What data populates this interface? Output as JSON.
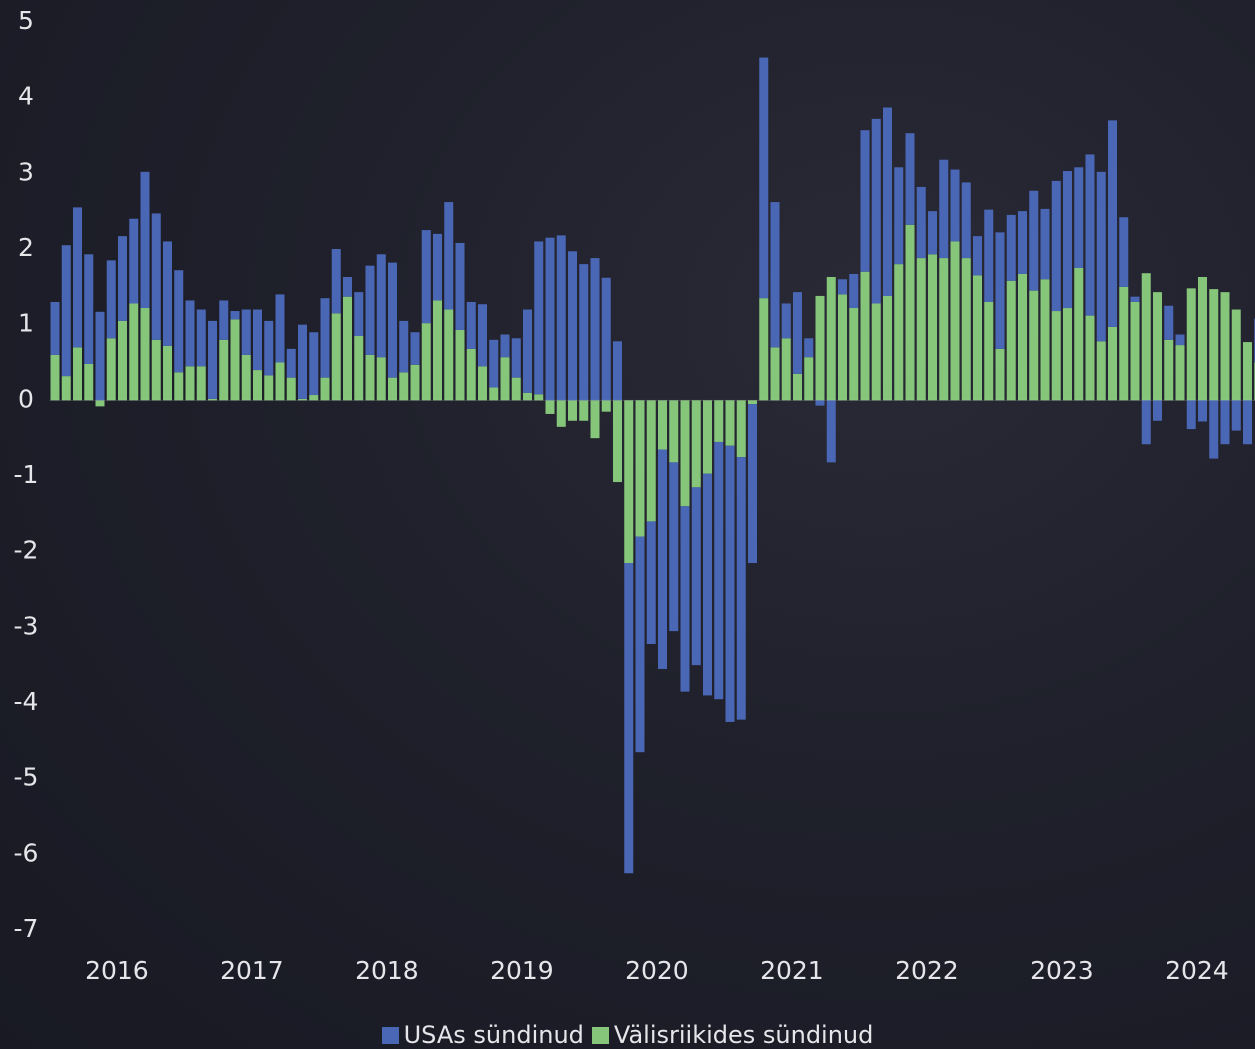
{
  "chart_data": {
    "type": "bar",
    "stacked": true,
    "categories": [
      null,
      null,
      null,
      null,
      null,
      null,
      "2016",
      null,
      null,
      null,
      null,
      null,
      null,
      null,
      null,
      null,
      null,
      null,
      "2017",
      null,
      null,
      null,
      null,
      null,
      null,
      null,
      null,
      null,
      null,
      null,
      "2018",
      null,
      null,
      null,
      null,
      null,
      null,
      null,
      null,
      null,
      null,
      null,
      "2019",
      null,
      null,
      null,
      null,
      null,
      null,
      null,
      null,
      null,
      null,
      null,
      "2020",
      null,
      null,
      null,
      null,
      null,
      null,
      null,
      null,
      null,
      null,
      null,
      "2021",
      null,
      null,
      null,
      null,
      null,
      null,
      null,
      null,
      null,
      null,
      null,
      "2022",
      null,
      null,
      null,
      null,
      null,
      null,
      null,
      null,
      null,
      null,
      null,
      "2023",
      null,
      null,
      null,
      null,
      null,
      null,
      null,
      null,
      null,
      null,
      null,
      "2024",
      null,
      null,
      null,
      null,
      null
    ],
    "series": [
      {
        "name": "USAs sündinud",
        "color": "#4a67b6",
        "values": [
          0.7,
          1.73,
          1.85,
          1.45,
          1.17,
          1.03,
          1.12,
          1.12,
          1.8,
          1.67,
          1.38,
          1.35,
          0.87,
          0.75,
          1.03,
          0.52,
          0.11,
          0.6,
          0.8,
          0.72,
          0.9,
          0.38,
          0.98,
          0.83,
          1.05,
          0.85,
          0.26,
          0.58,
          1.18,
          1.36,
          1.52,
          0.68,
          0.43,
          1.23,
          0.88,
          1.42,
          1.15,
          0.62,
          0.82,
          0.63,
          0.3,
          0.52,
          1.1,
          2.02,
          2.15,
          2.18,
          1.97,
          1.8,
          1.88,
          1.62,
          0.78,
          -4.1,
          -2.85,
          -1.62,
          -2.9,
          -2.23,
          -2.45,
          -2.35,
          -2.93,
          -3.4,
          -3.65,
          -3.47,
          -2.1,
          3.18,
          1.92,
          0.46,
          1.08,
          0.25,
          -0.07,
          -0.82,
          0.2,
          0.45,
          1.87,
          2.44,
          2.49,
          1.28,
          1.21,
          0.94,
          0.57,
          1.3,
          0.95,
          1.0,
          0.52,
          1.22,
          1.54,
          0.87,
          0.83,
          1.32,
          0.93,
          1.72,
          1.81,
          1.33,
          2.13,
          2.24,
          2.73,
          0.92,
          0.07,
          -0.58,
          -0.27,
          0.45,
          0.14,
          -0.38,
          -0.28,
          -0.77,
          -0.58,
          -0.4,
          -0.58,
          0.58
        ]
      },
      {
        "name": "Välisriikides sündinud",
        "color": "#86c67a",
        "values": [
          0.6,
          0.32,
          0.7,
          0.48,
          -0.08,
          0.82,
          1.05,
          1.28,
          1.22,
          0.8,
          0.72,
          0.37,
          0.45,
          0.45,
          0.02,
          0.8,
          1.07,
          0.6,
          0.4,
          0.33,
          0.5,
          0.3,
          0.02,
          0.07,
          0.3,
          1.15,
          1.37,
          0.85,
          0.6,
          0.57,
          0.3,
          0.37,
          0.47,
          1.02,
          1.32,
          1.2,
          0.93,
          0.68,
          0.45,
          0.17,
          0.57,
          0.3,
          0.1,
          0.08,
          -0.18,
          -0.35,
          -0.27,
          -0.27,
          -0.5,
          -0.15,
          -1.08,
          -2.15,
          -1.8,
          -1.6,
          -0.65,
          -0.82,
          -1.4,
          -1.15,
          -0.97,
          -0.55,
          -0.6,
          -0.75,
          -0.05,
          1.35,
          0.7,
          0.82,
          0.35,
          0.57,
          1.38,
          1.63,
          1.4,
          1.22,
          1.7,
          1.28,
          1.38,
          1.8,
          2.32,
          1.88,
          1.93,
          1.88,
          2.1,
          1.88,
          1.65,
          1.3,
          0.68,
          1.58,
          1.67,
          1.45,
          1.6,
          1.18,
          1.22,
          1.75,
          1.12,
          0.78,
          0.97,
          1.5,
          1.3,
          1.68,
          1.43,
          0.8,
          0.73,
          1.48,
          1.63,
          1.47,
          1.43,
          1.2,
          0.77,
          0.5
        ]
      }
    ],
    "ylim": [
      -7,
      5
    ],
    "yticks": [
      5,
      4,
      3,
      2,
      1,
      0,
      -1,
      -2,
      -3,
      -4,
      -5,
      -6,
      -7
    ],
    "grid": false
  }
}
